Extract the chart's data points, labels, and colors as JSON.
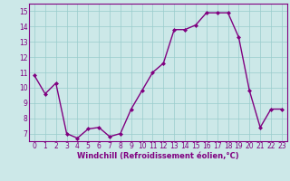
{
  "x": [
    0,
    1,
    2,
    3,
    4,
    5,
    6,
    7,
    8,
    9,
    10,
    11,
    12,
    13,
    14,
    15,
    16,
    17,
    18,
    19,
    20,
    21,
    22,
    23
  ],
  "y": [
    10.8,
    9.6,
    10.3,
    7.0,
    6.7,
    7.3,
    7.4,
    6.8,
    7.0,
    8.6,
    9.8,
    11.0,
    11.6,
    13.8,
    13.8,
    14.1,
    14.9,
    14.9,
    14.9,
    13.3,
    9.8,
    7.4,
    8.6,
    8.6
  ],
  "line_color": "#800080",
  "marker": "D",
  "marker_size": 2,
  "background_color": "#cce8e8",
  "grid_color": "#99cccc",
  "xlabel": "Windchill (Refroidissement éolien,°C)",
  "xlim": [
    -0.5,
    23.5
  ],
  "ylim": [
    6.5,
    15.5
  ],
  "yticks": [
    7,
    8,
    9,
    10,
    11,
    12,
    13,
    14,
    15
  ],
  "xticks": [
    0,
    1,
    2,
    3,
    4,
    5,
    6,
    7,
    8,
    9,
    10,
    11,
    12,
    13,
    14,
    15,
    16,
    17,
    18,
    19,
    20,
    21,
    22,
    23
  ],
  "tick_fontsize": 5.5,
  "xlabel_fontsize": 6.0,
  "line_width": 1.0
}
